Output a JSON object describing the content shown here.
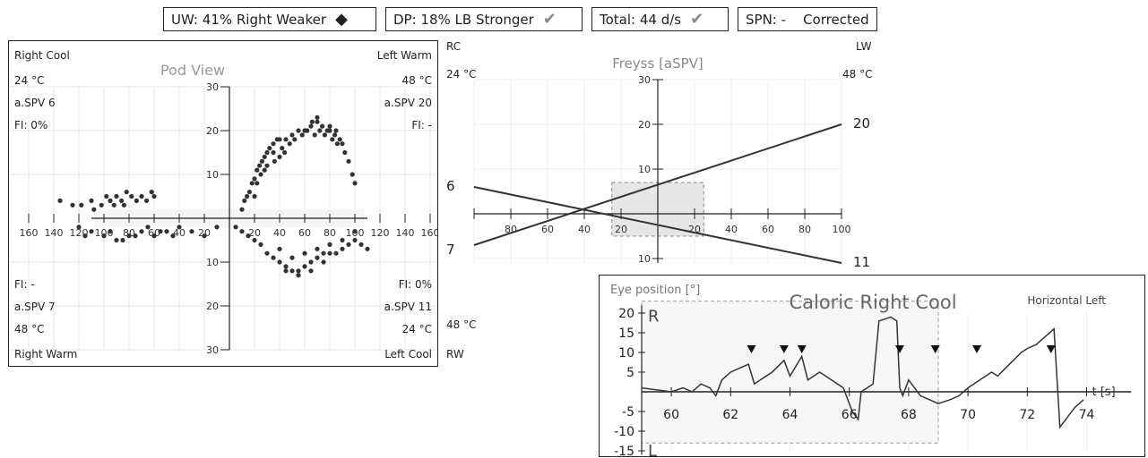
{
  "badges": {
    "uw": {
      "text": "UW: 41% Right Weaker",
      "icon": "diamond-icon"
    },
    "dp": {
      "text": "DP:  18% LB Stronger",
      "icon": "checkmark-icon"
    },
    "total": {
      "text": "Total: 44 d/s",
      "icon": "checkmark-icon"
    },
    "spn": {
      "text": "SPN: -    Corrected"
    }
  },
  "pod": {
    "title": "Pod View",
    "right_cool": "Right Cool",
    "rc_temp": "24 °C",
    "rc_spv": "a.SPV 6",
    "rc_fi": "FI: 0%",
    "left_warm": "Left Warm",
    "lw_temp": "48 °C",
    "lw_spv": "a.SPV 20",
    "lw_fi": "FI: -",
    "right_warm": "Right Warm",
    "rw_temp": "48 °C",
    "rw_spv": "a.SPV 7",
    "rw_fi": "FI: -",
    "left_cool": "Left Cool",
    "lc_temp": "24 °C",
    "lc_spv": "a.SPV 11",
    "lc_fi": "FI: 0%"
  },
  "freyss": {
    "title": "Freyss [aSPV]",
    "rc": "RC",
    "rc_temp": "24 °C",
    "lw": "LW",
    "lw_temp": "48 °C",
    "rw": "RW",
    "rw_temp": "48 °C",
    "val_6": "6",
    "val_7": "7",
    "val_20": "20",
    "val_11": "11"
  },
  "caloric": {
    "title": "Caloric Right Cool",
    "ylabel": "Eye position [°]",
    "direction": "Horizontal Left",
    "r_label": "R",
    "l_label": "L",
    "tunit": "t [s]"
  },
  "chart_data": [
    {
      "type": "scatter",
      "title": "Pod View",
      "xlabel": "t [s]",
      "x_ticks": [
        "160",
        "140",
        "120",
        "100",
        "80",
        "60",
        "40",
        "20",
        "20",
        "40",
        "60",
        "80",
        "100",
        "120",
        "140",
        "160",
        "180"
      ],
      "y_ticks": [
        "30",
        "20",
        "10",
        "10",
        "20",
        "30"
      ],
      "xlim": [
        -180,
        180
      ],
      "ylim": [
        -30,
        30
      ],
      "grid": true,
      "series": [
        {
          "quadrant": "top-right",
          "points": [
            [
              10,
              2
            ],
            [
              12,
              4
            ],
            [
              14,
              5
            ],
            [
              16,
              6
            ],
            [
              18,
              8
            ],
            [
              20,
              9
            ],
            [
              22,
              11
            ],
            [
              24,
              12
            ],
            [
              26,
              13
            ],
            [
              28,
              14
            ],
            [
              30,
              15
            ],
            [
              32,
              16
            ],
            [
              35,
              17
            ],
            [
              38,
              18
            ],
            [
              40,
              18
            ],
            [
              45,
              18
            ],
            [
              50,
              19
            ],
            [
              55,
              20
            ],
            [
              60,
              20
            ],
            [
              65,
              21
            ],
            [
              70,
              22
            ],
            [
              74,
              21
            ],
            [
              78,
              20
            ],
            [
              80,
              20
            ],
            [
              84,
              19
            ],
            [
              88,
              18
            ],
            [
              90,
              17
            ],
            [
              92,
              15
            ],
            [
              95,
              13
            ],
            [
              98,
              10
            ],
            [
              100,
              8
            ],
            [
              20,
              5
            ],
            [
              25,
              10
            ],
            [
              30,
              12
            ],
            [
              35,
              15
            ],
            [
              42,
              16
            ],
            [
              48,
              17
            ],
            [
              52,
              18
            ],
            [
              58,
              19
            ],
            [
              62,
              20
            ],
            [
              68,
              19
            ],
            [
              72,
              20
            ],
            [
              76,
              19
            ],
            [
              82,
              18
            ],
            [
              86,
              17
            ],
            [
              40,
              14
            ],
            [
              44,
              15
            ],
            [
              36,
              13
            ],
            [
              28,
              11
            ],
            [
              22,
              8
            ],
            [
              66,
              22
            ],
            [
              70,
              23
            ],
            [
              80,
              21
            ],
            [
              85,
              20
            ]
          ]
        },
        {
          "quadrant": "top-left",
          "points": [
            [
              -135,
              4
            ],
            [
              -125,
              3
            ],
            [
              -118,
              3
            ],
            [
              -110,
              4
            ],
            [
              -102,
              3
            ],
            [
              -98,
              5
            ],
            [
              -95,
              4
            ],
            [
              -90,
              5
            ],
            [
              -86,
              4
            ],
            [
              -82,
              6
            ],
            [
              -78,
              5
            ],
            [
              -74,
              4
            ],
            [
              -70,
              5
            ],
            [
              -66,
              4
            ],
            [
              -62,
              6
            ],
            [
              -60,
              5
            ],
            [
              -108,
              2
            ],
            [
              -92,
              3
            ],
            [
              -84,
              3
            ]
          ]
        },
        {
          "quadrant": "bottom-left",
          "points": [
            [
              -120,
              -2
            ],
            [
              -110,
              -3
            ],
            [
              -100,
              -4
            ],
            [
              -90,
              -5
            ],
            [
              -80,
              -4
            ],
            [
              -70,
              -3
            ],
            [
              -60,
              -4
            ],
            [
              -50,
              -3
            ],
            [
              -40,
              -2
            ],
            [
              -30,
              -3
            ],
            [
              -20,
              -4
            ],
            [
              -10,
              -2
            ],
            [
              -115,
              -4
            ],
            [
              -95,
              -3
            ],
            [
              -85,
              -5
            ],
            [
              -75,
              -4
            ],
            [
              -65,
              -2
            ],
            [
              -55,
              -3
            ],
            [
              -45,
              -4
            ]
          ]
        },
        {
          "quadrant": "bottom-right",
          "points": [
            [
              5,
              -2
            ],
            [
              10,
              -3
            ],
            [
              15,
              -4
            ],
            [
              20,
              -5
            ],
            [
              25,
              -6
            ],
            [
              30,
              -8
            ],
            [
              35,
              -9
            ],
            [
              40,
              -10
            ],
            [
              45,
              -11
            ],
            [
              50,
              -12
            ],
            [
              55,
              -12
            ],
            [
              60,
              -11
            ],
            [
              65,
              -10
            ],
            [
              70,
              -9
            ],
            [
              75,
              -8
            ],
            [
              80,
              -8
            ],
            [
              85,
              -8
            ],
            [
              90,
              -7
            ],
            [
              95,
              -6
            ],
            [
              100,
              -5
            ],
            [
              105,
              -6
            ],
            [
              110,
              -7
            ],
            [
              40,
              -7
            ],
            [
              50,
              -9
            ],
            [
              60,
              -8
            ],
            [
              70,
              -7
            ],
            [
              80,
              -6
            ],
            [
              90,
              -5
            ],
            [
              100,
              -3
            ],
            [
              55,
              -13
            ],
            [
              45,
              -12
            ],
            [
              65,
              -12
            ],
            [
              75,
              -10
            ]
          ]
        }
      ]
    },
    {
      "type": "line",
      "title": "Freyss [aSPV]",
      "x_ticks": [
        "80",
        "60",
        "40",
        "20",
        "20",
        "40",
        "60",
        "80",
        "100"
      ],
      "y_ticks": [
        "30",
        "20",
        "10",
        "10"
      ],
      "series": [
        {
          "from": [
            -100,
            6
          ],
          "to": [
            100,
            -11
          ],
          "labels": [
            "6",
            "11"
          ]
        },
        {
          "from": [
            -100,
            -7
          ],
          "to": [
            100,
            20
          ],
          "labels": [
            "7",
            "20"
          ]
        }
      ],
      "highlight": {
        "x": [
          -25,
          25
        ],
        "y": [
          -5,
          7
        ]
      }
    },
    {
      "type": "line",
      "title": "Caloric Right Cool",
      "ylabel": "Eye position [°]",
      "xlabel": "t [s]",
      "xlim": [
        59,
        74
      ],
      "ylim": [
        -15,
        20
      ],
      "x_ticks": [
        "60",
        "62",
        "64",
        "66",
        "68",
        "70",
        "72",
        "74"
      ],
      "y_ticks": [
        "20",
        "15",
        "10",
        "5",
        "-5",
        "-10",
        "-15"
      ],
      "trace": [
        [
          59,
          1
        ],
        [
          60,
          0
        ],
        [
          60.4,
          1
        ],
        [
          60.7,
          0
        ],
        [
          61,
          2
        ],
        [
          61.3,
          1
        ],
        [
          61.5,
          -1
        ],
        [
          61.7,
          3
        ],
        [
          62,
          5
        ],
        [
          62.3,
          6
        ],
        [
          62.6,
          7
        ],
        [
          62.8,
          2
        ],
        [
          63,
          3
        ],
        [
          63.4,
          5
        ],
        [
          63.8,
          8
        ],
        [
          64,
          4
        ],
        [
          64.4,
          9
        ],
        [
          64.6,
          3
        ],
        [
          65,
          5
        ],
        [
          65.4,
          3
        ],
        [
          65.8,
          1
        ],
        [
          66.1,
          -5
        ],
        [
          66.3,
          -7
        ],
        [
          66.4,
          0
        ],
        [
          66.8,
          2
        ],
        [
          67,
          18
        ],
        [
          67.4,
          19
        ],
        [
          67.6,
          18
        ],
        [
          67.7,
          1
        ],
        [
          67.8,
          -1
        ],
        [
          68,
          3
        ],
        [
          68.2,
          1
        ],
        [
          68.4,
          -1
        ],
        [
          68.7,
          -2
        ],
        [
          69,
          -3
        ],
        [
          69.4,
          -2
        ],
        [
          69.7,
          -1
        ],
        [
          70,
          1
        ],
        [
          70.4,
          3
        ],
        [
          70.8,
          5
        ],
        [
          71,
          4
        ],
        [
          71.4,
          7
        ],
        [
          71.8,
          10
        ],
        [
          72,
          11
        ],
        [
          72.3,
          12
        ],
        [
          72.6,
          14
        ],
        [
          72.9,
          16
        ],
        [
          73.1,
          -9
        ],
        [
          73.3,
          -7
        ],
        [
          73.6,
          -4
        ],
        [
          73.9,
          -2
        ]
      ],
      "markers": [
        62.7,
        63.8,
        64.4,
        67.7,
        68.9,
        70.3,
        72.8
      ],
      "region": {
        "x": [
          59,
          69
        ],
        "y": [
          -15,
          20
        ]
      }
    }
  ]
}
